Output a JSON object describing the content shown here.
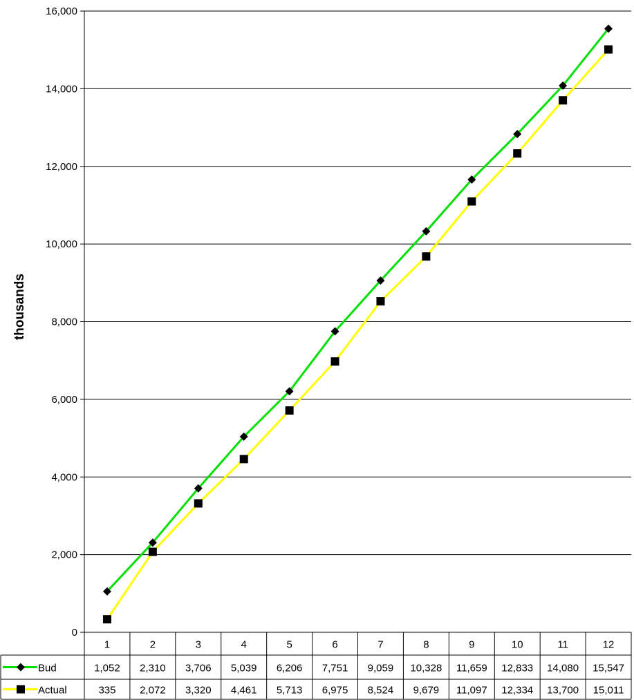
{
  "chart_data": {
    "type": "line",
    "title": "",
    "xlabel": "",
    "ylabel": "thousands",
    "ylim": [
      0,
      16000
    ],
    "yticks": [
      0,
      2000,
      4000,
      6000,
      8000,
      10000,
      12000,
      14000,
      16000
    ],
    "ytick_labels": [
      "0",
      "2,000",
      "4,000",
      "6,000",
      "8,000",
      "10,000",
      "12,000",
      "14,000",
      "16,000"
    ],
    "grid": true,
    "legend": "data-table",
    "categories": [
      "1",
      "2",
      "3",
      "4",
      "5",
      "6",
      "7",
      "8",
      "9",
      "10",
      "11",
      "12"
    ],
    "series": [
      {
        "name": "Bud",
        "color": "#00e000",
        "marker": "diamond",
        "values": [
          1052,
          2310,
          3706,
          5039,
          6206,
          7751,
          9059,
          10328,
          11659,
          12833,
          14080,
          15547
        ],
        "labels": [
          "1,052",
          "2,310",
          "3,706",
          "5,039",
          "6,206",
          "7,751",
          "9,059",
          "10,328",
          "11,659",
          "12,833",
          "14,080",
          "15,547"
        ]
      },
      {
        "name": "Actual",
        "color": "#ffff00",
        "marker": "square",
        "values": [
          335,
          2072,
          3320,
          4461,
          5713,
          6975,
          8524,
          9679,
          11097,
          12334,
          13700,
          15011
        ],
        "labels": [
          "335",
          "2,072",
          "3,320",
          "4,461",
          "5,713",
          "6,975",
          "8,524",
          "9,679",
          "11,097",
          "12,334",
          "13,700",
          "15,011"
        ]
      }
    ]
  }
}
